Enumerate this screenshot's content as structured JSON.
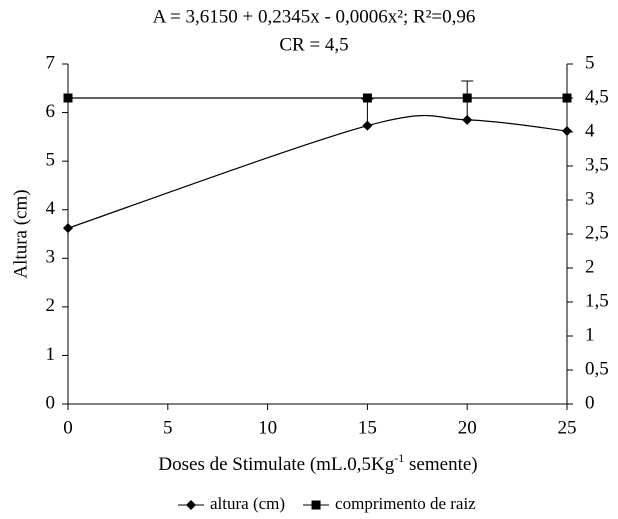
{
  "chart_data": {
    "type": "line",
    "title": "A = 3,6150 + 0,2345x - 0,0006x²; R²=0,96",
    "subtitle": "CR = 4,5",
    "ylabel": "Altura (cm)",
    "xlabel": [
      "Doses de Stimulate (mL.0,5Kg",
      "-1",
      " semente)"
    ],
    "x": [
      0,
      15,
      20,
      25
    ],
    "series": [
      {
        "name": "altura (cm)",
        "color": "#000000",
        "marker": "diamond",
        "values": [
          3.62,
          5.73,
          5.85,
          5.62
        ],
        "errors": [
          null,
          0.55,
          0.8,
          null
        ],
        "smooth": true
      },
      {
        "name": "comprimento de raiz",
        "color": "#000000",
        "marker": "square",
        "axis": "y2",
        "values": [
          4.5,
          4.5,
          4.5,
          4.5
        ]
      }
    ],
    "xlim": [
      0,
      25
    ],
    "xticks": [
      0,
      5,
      10,
      15,
      20,
      25
    ],
    "ylim": [
      0,
      7
    ],
    "yticks": [
      0,
      1,
      2,
      3,
      4,
      5,
      6,
      7
    ],
    "y2lim": [
      0,
      5
    ],
    "y2ticks": [
      0,
      {
        "value": 0.5,
        "label": "0,5"
      },
      1,
      {
        "value": 1.5,
        "label": "1,5"
      },
      2,
      {
        "value": 2.5,
        "label": "2,5"
      },
      3,
      {
        "value": 3.5,
        "label": "3,5"
      },
      4,
      {
        "value": 4.5,
        "label": "4,5"
      },
      5
    ],
    "legend": "bottom"
  }
}
